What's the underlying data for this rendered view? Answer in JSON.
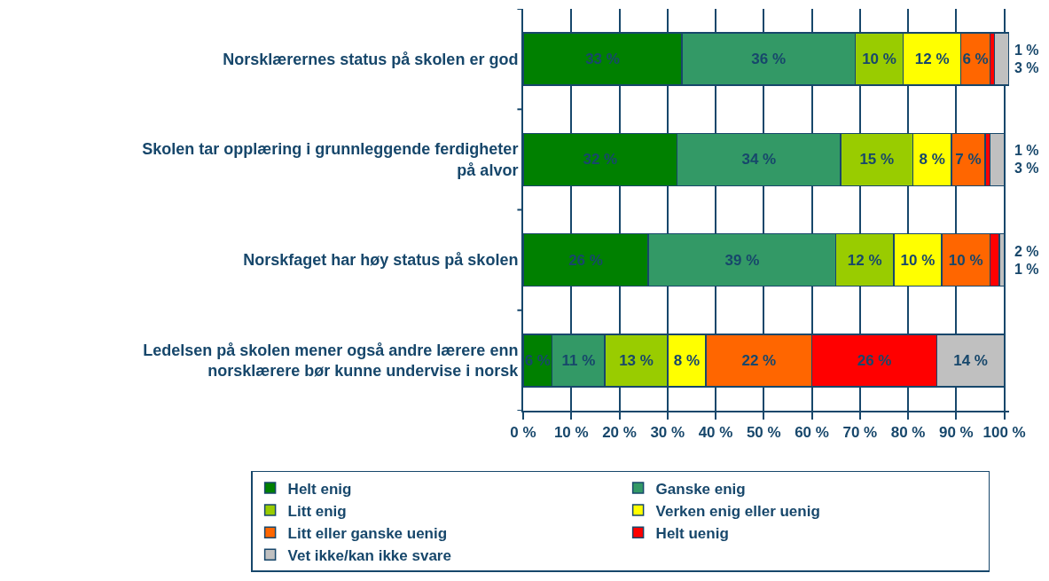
{
  "chart_data": {
    "type": "bar",
    "orientation": "horizontal",
    "stacked": true,
    "categories": [
      "Norsklærernes status på skolen er god",
      "Skolen tar opplæring i grunnleggende ferdigheter på alvor",
      "Norskfaget har høy status på skolen",
      "Ledelsen på skolen mener også andre lærere enn norsklærere bør kunne undervise i norsk"
    ],
    "series": [
      {
        "name": "Helt enig",
        "color": "#008000",
        "values": [
          33,
          32,
          26,
          6
        ],
        "value_labels": [
          "33 %",
          "32 %",
          "26 %",
          "6 %"
        ]
      },
      {
        "name": "Ganske enig",
        "color": "#339966",
        "values": [
          36,
          34,
          39,
          11
        ],
        "value_labels": [
          "36 %",
          "34 %",
          "39 %",
          "11 %"
        ]
      },
      {
        "name": "Litt enig",
        "color": "#99cc00",
        "values": [
          10,
          15,
          12,
          13
        ],
        "value_labels": [
          "10 %",
          "15 %",
          "12 %",
          "13 %"
        ]
      },
      {
        "name": "Verken enig eller uenig",
        "color": "#ffff00",
        "values": [
          12,
          8,
          10,
          8
        ],
        "value_labels": [
          "12 %",
          "8 %",
          "10 %",
          "8 %"
        ]
      },
      {
        "name": "Litt eller ganske uenig",
        "color": "#ff6600",
        "values": [
          6,
          7,
          10,
          22
        ],
        "value_labels": [
          "6 %",
          "7 %",
          "10 %",
          "22 %"
        ]
      },
      {
        "name": "Helt uenig",
        "color": "#ff0000",
        "values": [
          1,
          1,
          2,
          26
        ],
        "value_labels": [
          "1 %",
          "1 %",
          "2 %",
          "26 %"
        ]
      },
      {
        "name": "Vet ikke/kan ikke svare",
        "color": "#c0c0c0",
        "values": [
          3,
          3,
          1,
          14
        ],
        "value_labels": [
          "3 %",
          "3 %",
          "1 %",
          "14 %"
        ]
      }
    ],
    "xlim": [
      0,
      101
    ],
    "xticks": [
      {
        "value": 0,
        "label": "0 %"
      },
      {
        "value": 10,
        "label": "10 %"
      },
      {
        "value": 20,
        "label": "20 %"
      },
      {
        "value": 30,
        "label": "30 %"
      },
      {
        "value": 40,
        "label": "40 %"
      },
      {
        "value": 50,
        "label": "50 %"
      },
      {
        "value": 60,
        "label": "60 %"
      },
      {
        "value": 70,
        "label": "70 %"
      },
      {
        "value": 80,
        "label": "80 %"
      },
      {
        "value": 90,
        "label": "90 %"
      },
      {
        "value": 100,
        "label": "100 %"
      }
    ],
    "grid": "x",
    "legend": "bottom"
  }
}
